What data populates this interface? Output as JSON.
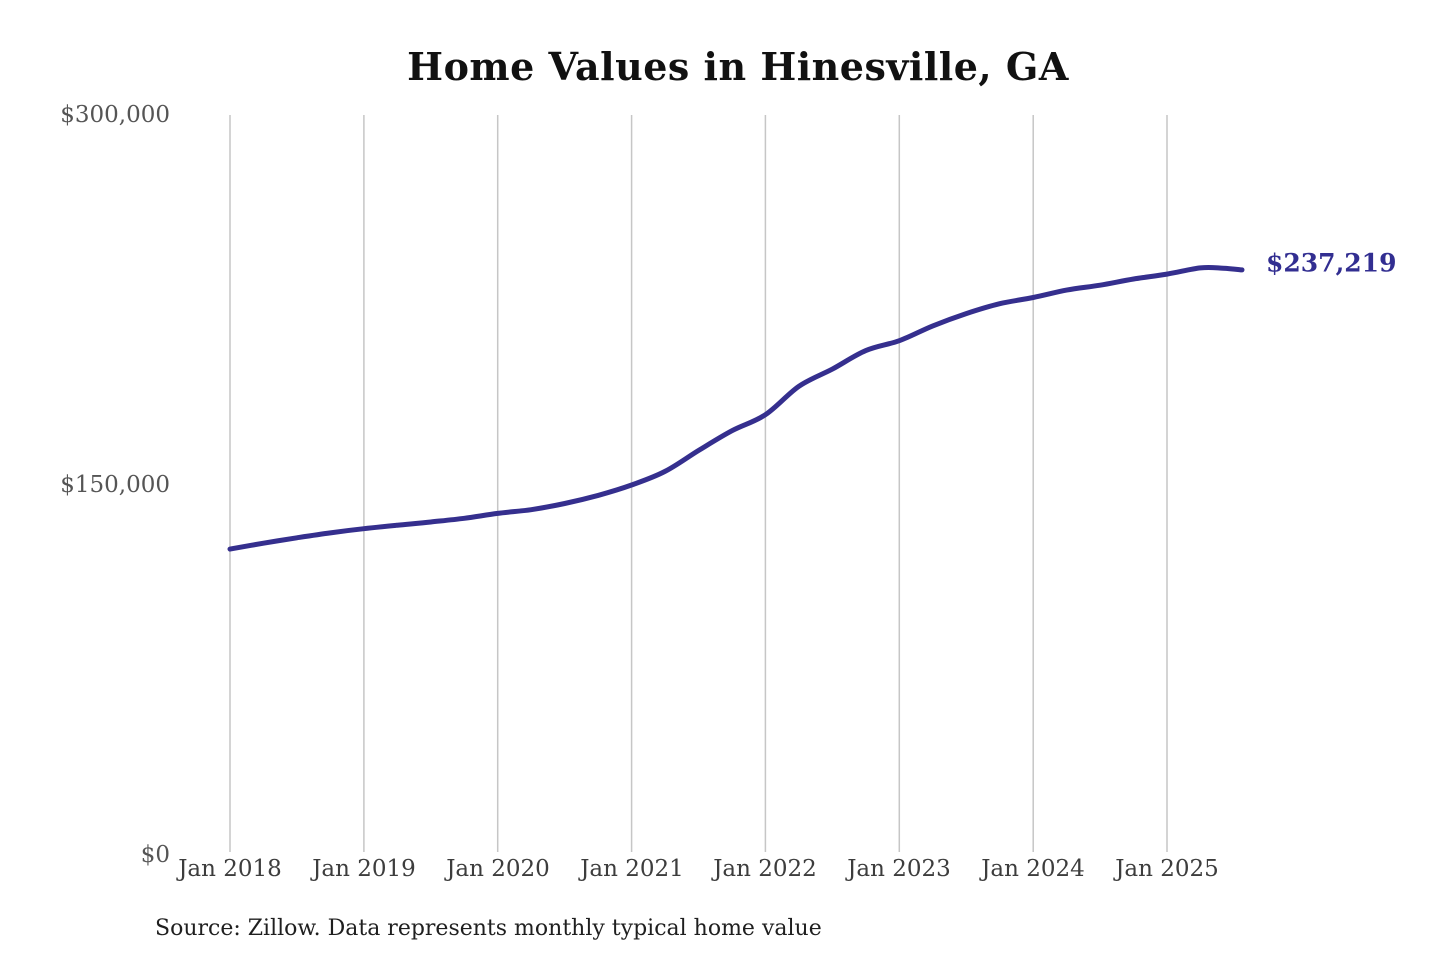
{
  "title": "Home Values in Hinesville, GA",
  "source_note": "Source: Zillow. Data represents monthly typical home value",
  "colors": {
    "line": "#352f8e",
    "final_label": "#322e91",
    "gridline": "#c6c6c6",
    "y_tick_text": "#555555",
    "x_tick_text": "#3d3d3d",
    "title_text": "#111111",
    "source_text": "#1f1f1f",
    "background": "#ffffff"
  },
  "chart_data": {
    "type": "line",
    "title": "Home Values in Hinesville, GA",
    "xlabel": "",
    "ylabel": "",
    "legend": "none",
    "grid": "vertical-only",
    "ylim": [
      0,
      300000
    ],
    "xlim_years": [
      2018.0,
      2025.85
    ],
    "y_ticks": [
      {
        "label": "$0",
        "value": 0
      },
      {
        "label": "$150,000",
        "value": 150000
      },
      {
        "label": "$300,000",
        "value": 300000
      }
    ],
    "x_ticks": [
      {
        "label": "Jan 2018",
        "year": 2018
      },
      {
        "label": "Jan 2019",
        "year": 2019
      },
      {
        "label": "Jan 2020",
        "year": 2020
      },
      {
        "label": "Jan 2021",
        "year": 2021
      },
      {
        "label": "Jan 2022",
        "year": 2022
      },
      {
        "label": "Jan 2023",
        "year": 2023
      },
      {
        "label": "Jan 2024",
        "year": 2024
      },
      {
        "label": "Jan 2025",
        "year": 2025
      }
    ],
    "series": [
      {
        "name": "Monthly typical home value",
        "points": [
          [
            2018.0,
            124000
          ],
          [
            2018.25,
            126400
          ],
          [
            2018.5,
            128600
          ],
          [
            2018.75,
            130600
          ],
          [
            2019.0,
            132300
          ],
          [
            2019.25,
            133700
          ],
          [
            2019.5,
            135000
          ],
          [
            2019.75,
            136500
          ],
          [
            2020.0,
            138500
          ],
          [
            2020.25,
            140000
          ],
          [
            2020.5,
            142500
          ],
          [
            2020.75,
            145800
          ],
          [
            2021.0,
            150000
          ],
          [
            2021.25,
            155500
          ],
          [
            2021.5,
            164000
          ],
          [
            2021.75,
            172000
          ],
          [
            2022.0,
            178500
          ],
          [
            2022.25,
            190000
          ],
          [
            2022.5,
            197000
          ],
          [
            2022.75,
            204500
          ],
          [
            2023.0,
            208500
          ],
          [
            2023.25,
            214500
          ],
          [
            2023.5,
            219500
          ],
          [
            2023.75,
            223500
          ],
          [
            2024.0,
            226000
          ],
          [
            2024.25,
            229000
          ],
          [
            2024.5,
            231000
          ],
          [
            2024.75,
            233500
          ],
          [
            2025.0,
            235500
          ],
          [
            2025.25,
            238000
          ],
          [
            2025.42,
            237900
          ],
          [
            2025.56,
            237219
          ]
        ]
      }
    ],
    "final_value": 237219,
    "final_value_label": "$237,219"
  }
}
